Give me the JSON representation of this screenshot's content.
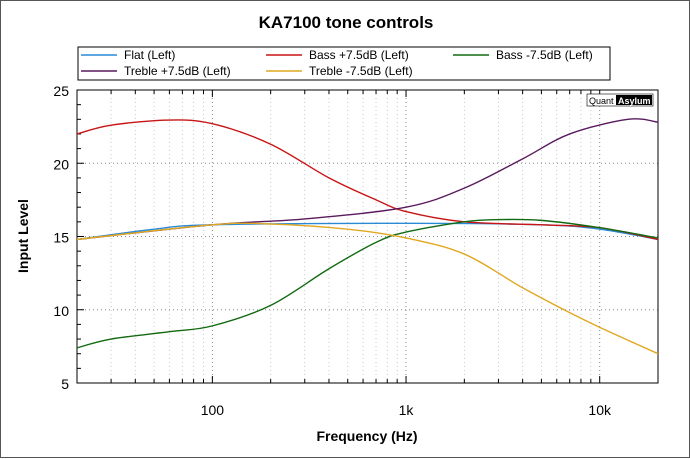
{
  "chart_data": {
    "type": "line",
    "title": "KA7100 tone controls",
    "xlabel": "Frequency (Hz)",
    "ylabel": "Input Level",
    "xscale": "log",
    "xlim": [
      20,
      20000
    ],
    "ylim": [
      5,
      25
    ],
    "xticks": [
      {
        "v": 100,
        "label": "100"
      },
      {
        "v": 1000,
        "label": "1k"
      },
      {
        "v": 10000,
        "label": "10k"
      }
    ],
    "yticks": [
      {
        "v": 5,
        "label": "5"
      },
      {
        "v": 10,
        "label": "10"
      },
      {
        "v": 15,
        "label": "15"
      },
      {
        "v": 20,
        "label": "20"
      },
      {
        "v": 25,
        "label": "25"
      }
    ],
    "grid": true,
    "legend_position": "top",
    "watermark": {
      "left": "Quant",
      "right": "Asylum"
    },
    "series": [
      {
        "name": "Flat (Left)",
        "color": "#2a8ad6",
        "x": [
          20,
          50,
          100,
          1000,
          5000,
          10000,
          20000
        ],
        "y": [
          14.8,
          15.5,
          15.8,
          15.9,
          15.8,
          15.5,
          14.8
        ]
      },
      {
        "name": "Bass +7.5dB (Left)",
        "color": "#c81414",
        "x": [
          20,
          30,
          60,
          100,
          200,
          400,
          700,
          1000,
          2000,
          5000,
          10000,
          20000
        ],
        "y": [
          22,
          22.6,
          22.95,
          22.7,
          21.3,
          19,
          17.5,
          16.7,
          16,
          15.8,
          15.6,
          14.8
        ]
      },
      {
        "name": "Bass -7.5dB (Left)",
        "color": "#126a12",
        "x": [
          20,
          30,
          60,
          100,
          200,
          400,
          700,
          1000,
          2000,
          3000,
          5000,
          10000,
          20000
        ],
        "y": [
          7.4,
          8.0,
          8.5,
          8.9,
          10.3,
          12.8,
          14.6,
          15.3,
          16,
          16.15,
          16.1,
          15.6,
          14.9
        ]
      },
      {
        "name": "Treble +7.5dB (Left)",
        "color": "#5a1a5e",
        "x": [
          20,
          100,
          300,
          1000,
          2000,
          4000,
          7000,
          14000,
          20000
        ],
        "y": [
          14.8,
          15.8,
          16.2,
          17,
          18.3,
          20.3,
          22,
          23,
          22.8
        ]
      },
      {
        "name": "Treble -7.5dB (Left)",
        "color": "#e0a820",
        "x": [
          20,
          100,
          200,
          500,
          1000,
          2000,
          4000,
          7000,
          10000,
          20000
        ],
        "y": [
          14.8,
          15.8,
          15.85,
          15.5,
          14.9,
          13.8,
          11.5,
          9.8,
          8.8,
          7.0
        ]
      }
    ]
  }
}
